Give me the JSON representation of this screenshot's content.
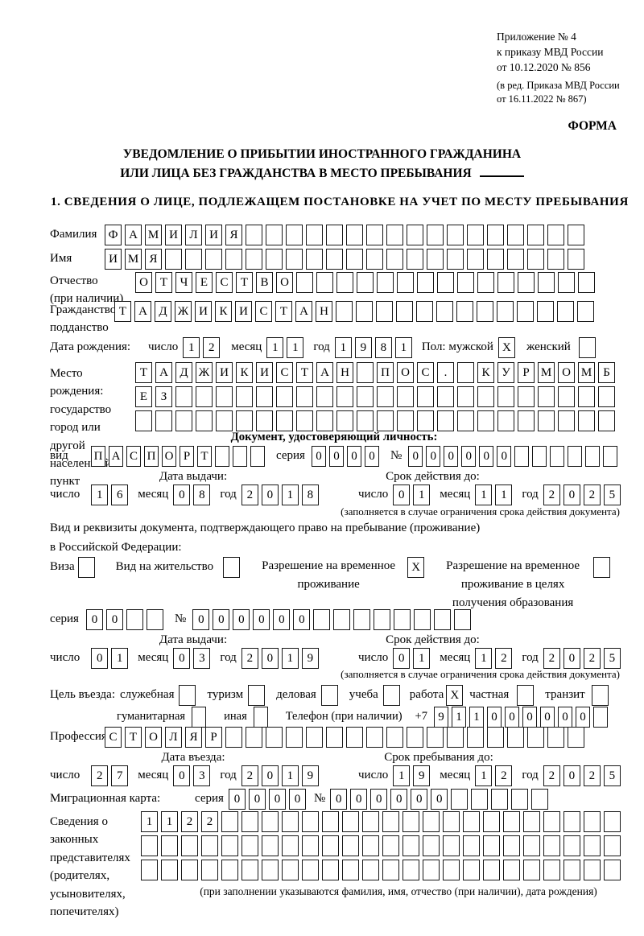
{
  "appendix": {
    "lines": [
      "Приложение № 4",
      "к приказу МВД России",
      "от 10.12.2020 № 856"
    ],
    "edition": [
      "(в ред. Приказа МВД России",
      "от 16.11.2022 № 867)"
    ],
    "form_label": "ФОРМА"
  },
  "title": {
    "line1": "УВЕДОМЛЕНИЕ О ПРИБЫТИИ ИНОСТРАННОГО ГРАЖДАНИНА",
    "line2": "ИЛИ ЛИЦА БЕЗ ГРАЖДАНСТВА В МЕСТО ПРЕБЫВАНИЯ"
  },
  "section1_heading": "1. СВЕДЕНИЯ О ЛИЦЕ, ПОДЛЕЖАЩЕМ ПОСТАНОВКЕ НА УЧЕТ ПО МЕСТУ ПРЕБЫВАНИЯ",
  "labels": {
    "day": "число",
    "month": "месяц",
    "year": "год",
    "series": "серия",
    "number": "№"
  },
  "surname": {
    "label": "Фамилия",
    "cells": {
      "text": "ФАМИЛИЯ",
      "total": 24
    }
  },
  "firstname": {
    "label": "Имя",
    "cells": {
      "text": "ИМЯ",
      "total": 24
    }
  },
  "patronymic": {
    "label": "Отчество",
    "label2": "(при наличии)",
    "cells": {
      "text": "ОТЧЕСТВО",
      "total": 23
    }
  },
  "citizenship": {
    "label": "Гражданство,",
    "label2": "подданство",
    "cells": {
      "text": "ТАДЖИКИСТАН",
      "total": 24
    }
  },
  "birth": {
    "label": "Дата рождения:",
    "day": {
      "text": "12",
      "total": 2
    },
    "month": {
      "text": "11",
      "total": 2
    },
    "year": {
      "text": "1981",
      "total": 4
    },
    "sex_label": "Пол: мужской",
    "male": "X",
    "female_label": "женский",
    "female": ""
  },
  "birthplace": {
    "label1": "Место рождения:",
    "label2": "государство",
    "label3": "город или другой",
    "label4": "населенный пункт",
    "row1": {
      "text": "ТАДЖИКИСТАН ПОС. КУРМОМБ",
      "total": 24
    },
    "row2": {
      "text": "ЕЗ",
      "total": 24
    },
    "row3": {
      "text": "",
      "total": 24
    }
  },
  "identity_doc": {
    "heading": "Документ, удостоверяющий личность:",
    "type_label": "вид",
    "type": {
      "text": "ПАСПОРТ",
      "total": 10
    },
    "series": {
      "text": "0000",
      "total": 4
    },
    "number": {
      "text": "000000",
      "total": 12
    },
    "issue_heading": "Дата выдачи:",
    "issue": {
      "day": {
        "text": "16",
        "total": 2
      },
      "month": {
        "text": "08",
        "total": 2
      },
      "year": {
        "text": "2018",
        "total": 4
      }
    },
    "valid_heading": "Срок действия до:",
    "valid": {
      "day": {
        "text": "01",
        "total": 2
      },
      "month": {
        "text": "11",
        "total": 2
      },
      "year": {
        "text": "2025",
        "total": 4
      }
    },
    "note": "(заполняется в случае ограничения срока действия документа)"
  },
  "residence_doc": {
    "intro1": "Вид и реквизиты документа, подтверждающего право на пребывание (проживание)",
    "intro2": "в Российской Федерации:",
    "visa_label": "Виза",
    "visa": "",
    "residence_permit_label": "Вид на жительство",
    "residence_permit": "",
    "temp_lines": [
      "Разрешение на временное",
      "проживание"
    ],
    "temp": "X",
    "temp_edu_lines": [
      "Разрешение на временное",
      "проживание в целях",
      "получения образования"
    ],
    "temp_edu": "",
    "series": {
      "text": "00",
      "total": 4
    },
    "number": {
      "text": "000000",
      "total": 14
    },
    "issue_heading": "Дата выдачи:",
    "issue": {
      "day": {
        "text": "01",
        "total": 2
      },
      "month": {
        "text": "03",
        "total": 2
      },
      "year": {
        "text": "2019",
        "total": 4
      }
    },
    "valid_heading": "Срок действия до:",
    "valid": {
      "day": {
        "text": "01",
        "total": 2
      },
      "month": {
        "text": "12",
        "total": 2
      },
      "year": {
        "text": "2025",
        "total": 4
      }
    },
    "note": "(заполняется в случае ограничения срока действия документа)"
  },
  "purpose": {
    "label": "Цель въезда:",
    "options": [
      {
        "label": "служебная",
        "value": ""
      },
      {
        "label": "туризм",
        "value": ""
      },
      {
        "label": "деловая",
        "value": ""
      },
      {
        "label": "учеба",
        "value": ""
      },
      {
        "label": "работа",
        "value": "X"
      },
      {
        "label": "частная",
        "value": ""
      },
      {
        "label": "транзит",
        "value": ""
      },
      {
        "label": "гуманитарная",
        "value": ""
      },
      {
        "label": "иная",
        "value": ""
      }
    ]
  },
  "phone": {
    "label": "Телефон (при наличии)",
    "prefix": "+7",
    "cells": {
      "text": "911000000",
      "total": 10
    }
  },
  "profession": {
    "label": "Профессия",
    "cells": {
      "text": "СТОЛЯР",
      "total": 24
    }
  },
  "entry": {
    "heading": "Дата въезда:",
    "day": {
      "text": "27",
      "total": 2
    },
    "month": {
      "text": "03",
      "total": 2
    },
    "year": {
      "text": "2019",
      "total": 4
    }
  },
  "stay": {
    "heading": "Срок пребывания до:",
    "day": {
      "text": "19",
      "total": 2
    },
    "month": {
      "text": "12",
      "total": 2
    },
    "year": {
      "text": "2025",
      "total": 4
    }
  },
  "migration_card": {
    "label": "Миграционная карта:",
    "series": {
      "text": "0000",
      "total": 4
    },
    "number": {
      "text": "000000",
      "total": 11
    }
  },
  "representatives": {
    "label_lines": [
      "Сведения о",
      "законных",
      "представителях",
      "(родителях,",
      "усыновителях,",
      "попечителях)"
    ],
    "row1": {
      "text": "1122",
      "total": 24
    },
    "row2": {
      "text": "",
      "total": 24
    },
    "row3": {
      "text": "",
      "total": 24
    },
    "note": "(при заполнении указываются фамилия, имя, отчество (при наличии), дата рождения)"
  }
}
